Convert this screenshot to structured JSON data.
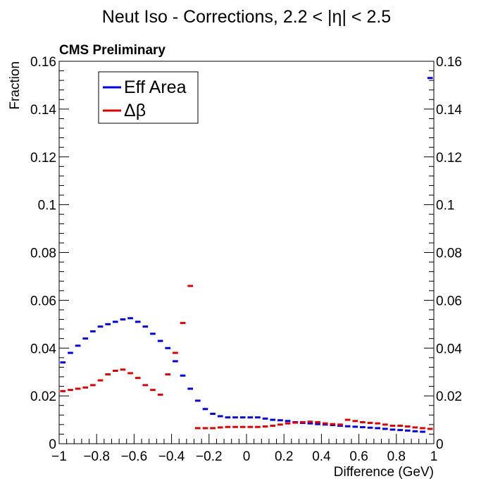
{
  "chart_data": {
    "type": "histogram",
    "title": "Neut Iso - Corrections, 2.2 < |η| < 2.5",
    "label": "CMS Preliminary",
    "xlabel": "Difference (GeV)",
    "ylabel": "Fraction",
    "xlim": [
      -1,
      1
    ],
    "ylim": [
      0,
      0.16
    ],
    "xticks": [
      -1,
      -0.8,
      -0.6,
      -0.4,
      -0.2,
      0,
      0.2,
      0.4,
      0.6,
      0.8,
      1
    ],
    "xtick_labels": [
      "−1",
      "−0.8",
      "−0.6",
      "−0.4",
      "−0.2",
      "0",
      "0.2",
      "0.4",
      "0.6",
      "0.8",
      "1"
    ],
    "yticks": [
      0,
      0.02,
      0.04,
      0.06,
      0.08,
      0.1,
      0.12,
      0.14,
      0.16
    ],
    "ytick_labels": [
      "0",
      "0.02",
      "0.04",
      "0.06",
      "0.08",
      "0.1",
      "0.12",
      "0.14",
      "0.16"
    ],
    "bin_width": 0.04,
    "bin_centers": [
      -0.98,
      -0.94,
      -0.9,
      -0.86,
      -0.82,
      -0.78,
      -0.74,
      -0.7,
      -0.66,
      -0.62,
      -0.58,
      -0.54,
      -0.5,
      -0.46,
      -0.42,
      -0.38,
      -0.34,
      -0.3,
      -0.26,
      -0.22,
      -0.18,
      -0.14,
      -0.1,
      -0.06,
      -0.02,
      0.02,
      0.06,
      0.1,
      0.14,
      0.18,
      0.22,
      0.26,
      0.3,
      0.34,
      0.38,
      0.42,
      0.46,
      0.5,
      0.54,
      0.58,
      0.62,
      0.66,
      0.7,
      0.74,
      0.78,
      0.82,
      0.86,
      0.9,
      0.94,
      0.98
    ],
    "series": [
      {
        "name": "Eff Area",
        "color": "#0000dd",
        "values": [
          0.034,
          0.038,
          0.041,
          0.044,
          0.047,
          0.049,
          0.05,
          0.051,
          0.052,
          0.0525,
          0.051,
          0.049,
          0.046,
          0.043,
          0.04,
          0.0345,
          0.0285,
          0.023,
          0.018,
          0.0145,
          0.0125,
          0.0115,
          0.011,
          0.011,
          0.011,
          0.011,
          0.011,
          0.0105,
          0.01,
          0.0098,
          0.0095,
          0.009,
          0.0087,
          0.0085,
          0.0082,
          0.008,
          0.0078,
          0.0075,
          0.0073,
          0.0071,
          0.0069,
          0.0067,
          0.0065,
          0.0062,
          0.0059,
          0.0057,
          0.0055,
          0.0052,
          0.005,
          0.153
        ]
      },
      {
        "name": "Δβ",
        "color": "#dd0000",
        "values": [
          0.022,
          0.0225,
          0.023,
          0.0235,
          0.0245,
          0.0265,
          0.029,
          0.0305,
          0.031,
          0.0295,
          0.0275,
          0.0245,
          0.0225,
          0.0205,
          0.029,
          0.038,
          0.0505,
          0.066,
          0.0065,
          0.0065,
          0.0065,
          0.0068,
          0.007,
          0.007,
          0.007,
          0.007,
          0.007,
          0.0072,
          0.0075,
          0.008,
          0.0085,
          0.0088,
          0.009,
          0.0092,
          0.009,
          0.0085,
          0.0082,
          0.008,
          0.01,
          0.0095,
          0.009,
          0.0087,
          0.0085,
          0.008,
          0.0075,
          0.0075,
          0.0072,
          0.0068,
          0.0065,
          0.0062
        ]
      }
    ],
    "legend": {
      "placement": "top-left",
      "entries": [
        "Eff Area",
        "Δβ"
      ]
    },
    "grid": false
  }
}
